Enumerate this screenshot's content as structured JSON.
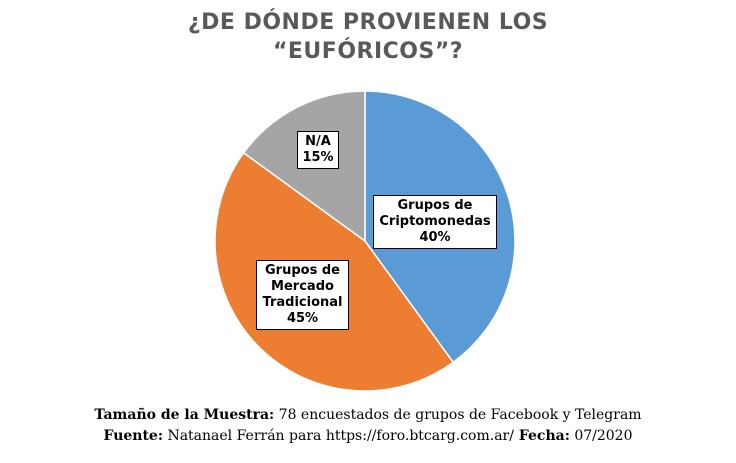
{
  "chart_data": {
    "type": "pie",
    "title_lines": [
      "¿DE DÓNDE PROVIENEN LOS",
      "“EUFÓRICOS”?"
    ],
    "slices": [
      {
        "label_lines": [
          "Grupos de",
          "Criptomonedas"
        ],
        "value": 40,
        "value_label": "40%",
        "color": "#5B9BD5"
      },
      {
        "label_lines": [
          "Grupos de",
          "Mercado",
          "Tradicional"
        ],
        "value": 45,
        "value_label": "45%",
        "color": "#ED7D31"
      },
      {
        "label_lines": [
          "N/A"
        ],
        "value": 15,
        "value_label": "15%",
        "color": "#A5A5A5"
      }
    ]
  },
  "footer": {
    "sample_label": "Tamaño de la Muestra:",
    "sample_text": " 78 encuestados de grupos de Facebook y Telegram",
    "source_label": "Fuente:",
    "source_text": " Natanael Ferrán para https://foro.btcarg.com.ar/",
    "date_label": " Fecha:",
    "date_text": " 07/2020"
  }
}
